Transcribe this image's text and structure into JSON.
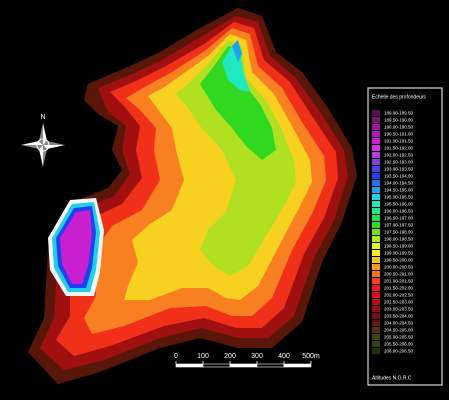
{
  "compass": {
    "north": "N"
  },
  "scale_bar": {
    "labels": [
      "0",
      "100",
      "200",
      "300",
      "400",
      "500m"
    ]
  },
  "legend": {
    "title": "Echelle des profondeurs",
    "entries": [
      {
        "label": "189.00-189.50",
        "color": "#5a0a5a"
      },
      {
        "label": "189.50-190.00",
        "color": "#7a107a"
      },
      {
        "label": "190.00-190.50",
        "color": "#9a149a"
      },
      {
        "label": "190.50-191.00",
        "color": "#b018b8"
      },
      {
        "label": "191.00-191.50",
        "color": "#c820d0"
      },
      {
        "label": "191.50-192.00",
        "color": "#d830e8"
      },
      {
        "label": "192.00-192.50",
        "color": "#b040e0"
      },
      {
        "label": "192.50-193.00",
        "color": "#8040e0"
      },
      {
        "label": "193.00-193.50",
        "color": "#5040e0"
      },
      {
        "label": "193.50-194.00",
        "color": "#2040f0"
      },
      {
        "label": "194.00-194.50",
        "color": "#2070f0"
      },
      {
        "label": "194.50-195.00",
        "color": "#20a0f0"
      },
      {
        "label": "195.00-195.50",
        "color": "#20d0e8"
      },
      {
        "label": "195.50-196.00",
        "color": "#20e8c0"
      },
      {
        "label": "196.00-196.50",
        "color": "#20e890"
      },
      {
        "label": "196.50-197.00",
        "color": "#20e050"
      },
      {
        "label": "197.00-197.50",
        "color": "#30d820"
      },
      {
        "label": "197.50-198.00",
        "color": "#70e020"
      },
      {
        "label": "198.00-198.50",
        "color": "#b0e820"
      },
      {
        "label": "198.50-199.00",
        "color": "#e0f020"
      },
      {
        "label": "199.00-199.50",
        "color": "#f8e820"
      },
      {
        "label": "199.50-200.00",
        "color": "#f8c020"
      },
      {
        "label": "200.00-200.50",
        "color": "#f89820"
      },
      {
        "label": "200.50-201.00",
        "color": "#f87020"
      },
      {
        "label": "201.00-201.50",
        "color": "#f84020"
      },
      {
        "label": "201.50-202.00",
        "color": "#f01818"
      },
      {
        "label": "202.00-202.50",
        "color": "#d01010"
      },
      {
        "label": "202.50-203.00",
        "color": "#b01010"
      },
      {
        "label": "203.00-203.50",
        "color": "#901010"
      },
      {
        "label": "203.50-204.00",
        "color": "#701010"
      },
      {
        "label": "204.00-204.50",
        "color": "#601808"
      },
      {
        "label": "204.50-205.00",
        "color": "#503010"
      },
      {
        "label": "205.00-205.50",
        "color": "#404010"
      },
      {
        "label": "205.50-206.00",
        "color": "#304010"
      },
      {
        "label": "206.00-206.50",
        "color": "#203010"
      }
    ],
    "footer": "Altitudes N.G.R.C"
  }
}
